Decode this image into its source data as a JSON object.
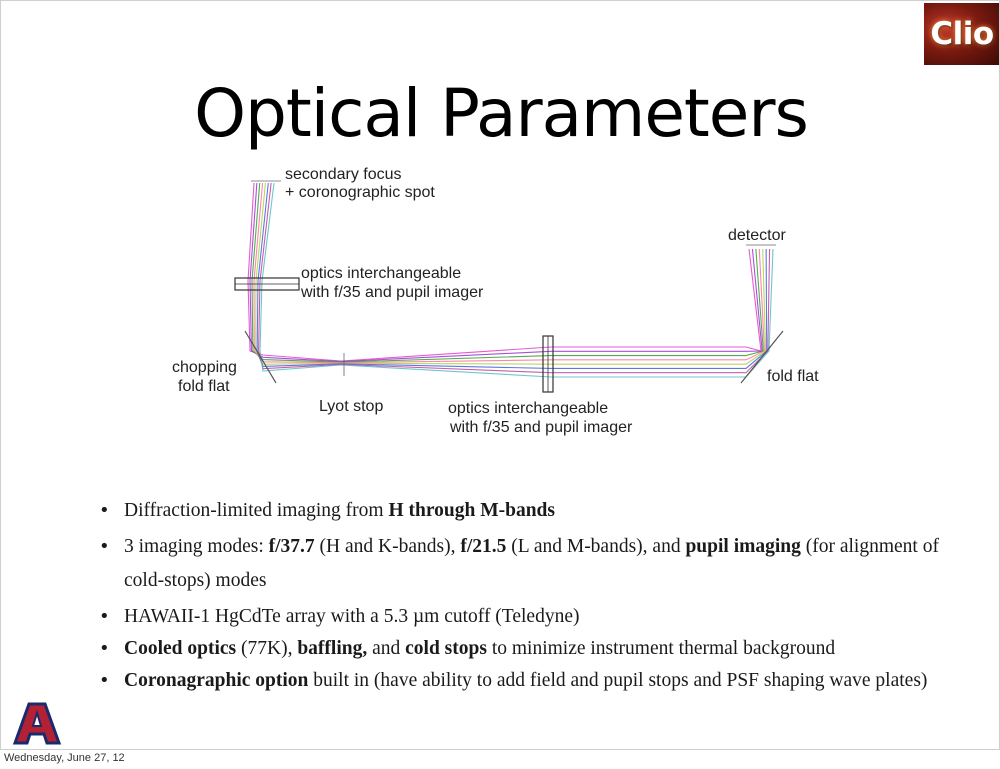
{
  "slide": {
    "title": "Optical Parameters",
    "logo_text": "Clio",
    "footer_date": "Wednesday, June 27, 12"
  },
  "diagram": {
    "labels": {
      "secondary_focus_1": "secondary focus",
      "secondary_focus_2": "+ coronographic spot",
      "optics_top_1": "optics interchangeable",
      "optics_top_2": "with f/35 and pupil imager",
      "detector": "detector",
      "chopping_1": "chopping",
      "chopping_2": "fold flat",
      "lyot_stop": "Lyot stop",
      "optics_bottom_1": "optics interchangeable",
      "optics_bottom_2": "with f/35 and pupil imager",
      "fold_flat": "fold flat"
    },
    "ray_colors": [
      "#e040c8",
      "#9b30d0",
      "#30a030",
      "#ff6fa0",
      "#b0d040",
      "#4060e0",
      "#c040a0",
      "#50c0c0"
    ]
  },
  "bullets": {
    "b1": {
      "t1": "Diffraction-limited imaging from ",
      "b1": "H through M-bands"
    },
    "b2": {
      "t1": "3 imaging modes: ",
      "b1": "f/37.7",
      "t2": " (H and K-bands),  ",
      "b2": "f/21.5",
      "t3": " (L and M-bands), and ",
      "b3": "pupil imaging",
      "t4": " (for alignment of cold-stops) modes"
    },
    "b3": {
      "t1": "HAWAII-1 HgCdTe array with a 5.3 µm cutoff (Teledyne)"
    },
    "b4": {
      "b1": "Cooled optics",
      "t1": " (77K), ",
      "b2": "baffling,",
      "t2": " and ",
      "b3": "cold stops",
      "t3": " to minimize instrument thermal background"
    },
    "b5": {
      "b1": "Coronagraphic option",
      "t1": " built in (have ability to add field and pupil stops and PSF shaping wave plates)"
    }
  }
}
